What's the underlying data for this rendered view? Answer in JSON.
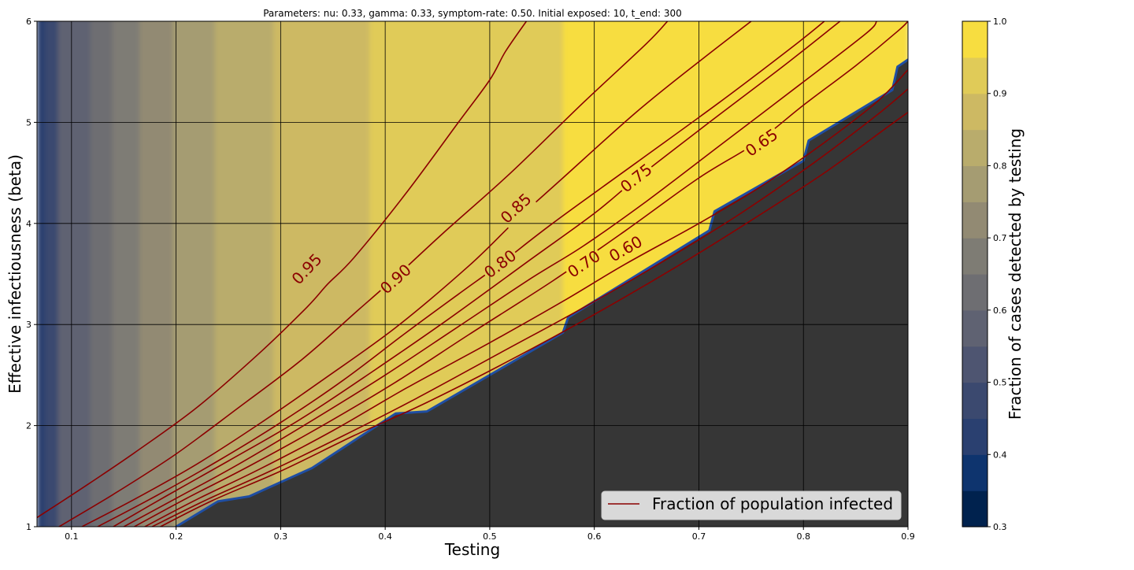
{
  "chart_data": {
    "type": "heatmap",
    "title": "Parameters: nu: 0.33, gamma: 0.33, symptom-rate: 0.50. Initial exposed: 10, t_end: 300",
    "xlabel": "Testing",
    "ylabel": "Effective infectiousness (beta)",
    "xlim": [
      0.067,
      0.9
    ],
    "ylim": [
      1,
      6
    ],
    "x_ticks": [
      0.1,
      0.2,
      0.3,
      0.4,
      0.5,
      0.6,
      0.7,
      0.8,
      0.9
    ],
    "x_tick_labels": [
      "0.1",
      "0.2",
      "0.3",
      "0.4",
      "0.5",
      "0.6",
      "0.7",
      "0.8",
      "0.9"
    ],
    "y_ticks": [
      1,
      2,
      3,
      4,
      5,
      6
    ],
    "y_tick_labels": [
      "1",
      "2",
      "3",
      "4",
      "5",
      "6"
    ],
    "grid": true,
    "colorbar": {
      "label": "Fraction of cases detected by testing",
      "range": [
        0.3,
        1.0
      ],
      "ticks": [
        0.3,
        0.4,
        0.5,
        0.6,
        0.7,
        0.8,
        0.9,
        1.0
      ],
      "tick_labels": [
        "0.3",
        "0.4",
        "0.5",
        "0.6",
        "0.7",
        "0.8",
        "0.9",
        "1.0"
      ],
      "levels": [
        {
          "lo": 0.3,
          "hi": 0.35,
          "color": "#00224e"
        },
        {
          "lo": 0.35,
          "hi": 0.4,
          "color": "#0e346e"
        },
        {
          "lo": 0.4,
          "hi": 0.45,
          "color": "#2a4070"
        },
        {
          "lo": 0.45,
          "hi": 0.5,
          "color": "#3b496f"
        },
        {
          "lo": 0.5,
          "hi": 0.55,
          "color": "#4e5571"
        },
        {
          "lo": 0.55,
          "hi": 0.6,
          "color": "#5f6272"
        },
        {
          "lo": 0.6,
          "hi": 0.65,
          "color": "#6e6e72"
        },
        {
          "lo": 0.65,
          "hi": 0.7,
          "color": "#7e7c74"
        },
        {
          "lo": 0.7,
          "hi": 0.75,
          "color": "#928a73"
        },
        {
          "lo": 0.75,
          "hi": 0.8,
          "color": "#a59c72"
        },
        {
          "lo": 0.8,
          "hi": 0.85,
          "color": "#b9ac6c"
        },
        {
          "lo": 0.85,
          "hi": 0.9,
          "color": "#cdb963"
        },
        {
          "lo": 0.9,
          "hi": 0.95,
          "color": "#e0cb58"
        },
        {
          "lo": 0.95,
          "hi": 1.0,
          "color": "#f7dd40"
        }
      ]
    },
    "no_data_color": "#363636",
    "boundary": [
      [
        0.2,
        1.0
      ],
      [
        0.24,
        1.25
      ],
      [
        0.27,
        1.3
      ],
      [
        0.33,
        1.58
      ],
      [
        0.41,
        2.12
      ],
      [
        0.44,
        2.14
      ],
      [
        0.57,
        2.92
      ],
      [
        0.575,
        3.07
      ],
      [
        0.71,
        3.93
      ],
      [
        0.715,
        4.12
      ],
      [
        0.8,
        4.62
      ],
      [
        0.805,
        4.82
      ],
      [
        0.885,
        5.32
      ],
      [
        0.89,
        5.55
      ],
      [
        0.9,
        5.62
      ]
    ],
    "band_regions": [
      {
        "x0": 0.067,
        "x1": 0.075,
        "value": 0.42
      },
      {
        "x0": 0.075,
        "x1": 0.087,
        "value": 0.47
      },
      {
        "x0": 0.087,
        "x1": 0.118,
        "value": 0.55
      },
      {
        "x0": 0.118,
        "x1": 0.139,
        "value": 0.62
      },
      {
        "x0": 0.139,
        "x1": 0.165,
        "value": 0.67
      },
      {
        "x0": 0.165,
        "x1": 0.197,
        "value": 0.72
      },
      {
        "x0": 0.197,
        "x1": 0.237,
        "value": 0.77
      },
      {
        "x0": 0.237,
        "x1": 0.293,
        "value": 0.82
      },
      {
        "x0": 0.293,
        "x1": 0.385,
        "value": 0.87
      },
      {
        "x0": 0.385,
        "x1": 0.57,
        "value": 0.92
      },
      {
        "x0": 0.57,
        "x1": 0.9,
        "value": 0.97
      }
    ],
    "contour_series_name": "Fraction of population infected",
    "contour_color": "#8b0000",
    "contours": [
      {
        "level": 0.95,
        "label": "0.95",
        "label_at": [
          0.325,
          3.55
        ],
        "points": [
          [
            0.067,
            1.09
          ],
          [
            0.11,
            1.38
          ],
          [
            0.16,
            1.73
          ],
          [
            0.22,
            2.18
          ],
          [
            0.28,
            2.72
          ],
          [
            0.325,
            3.17
          ],
          [
            0.345,
            3.4
          ],
          [
            0.37,
            3.66
          ],
          [
            0.42,
            4.3
          ],
          [
            0.47,
            5.0
          ],
          [
            0.5,
            5.42
          ],
          [
            0.515,
            5.7
          ],
          [
            0.535,
            6.0
          ]
        ]
      },
      {
        "level": 0.9,
        "label": "0.90",
        "label_at": [
          0.41,
          3.45
        ],
        "points": [
          [
            0.088,
            1.0
          ],
          [
            0.14,
            1.32
          ],
          [
            0.2,
            1.72
          ],
          [
            0.26,
            2.18
          ],
          [
            0.32,
            2.65
          ],
          [
            0.375,
            3.15
          ],
          [
            0.41,
            3.47
          ],
          [
            0.455,
            3.9
          ],
          [
            0.52,
            4.5
          ],
          [
            0.59,
            5.2
          ],
          [
            0.65,
            5.78
          ],
          [
            0.67,
            6.0
          ]
        ]
      },
      {
        "level": 0.85,
        "label": "0.85",
        "label_at": [
          0.525,
          4.15
        ],
        "points": [
          [
            0.11,
            1.0
          ],
          [
            0.16,
            1.27
          ],
          [
            0.22,
            1.62
          ],
          [
            0.28,
            2.02
          ],
          [
            0.34,
            2.45
          ],
          [
            0.41,
            2.97
          ],
          [
            0.48,
            3.58
          ],
          [
            0.525,
            4.03
          ],
          [
            0.57,
            4.45
          ],
          [
            0.64,
            5.1
          ],
          [
            0.7,
            5.6
          ],
          [
            0.75,
            6.0
          ]
        ]
      },
      {
        "level": 0.8,
        "label": "0.80",
        "label_at": [
          0.51,
          3.6
        ],
        "points": [
          [
            0.125,
            1.0
          ],
          [
            0.18,
            1.3
          ],
          [
            0.24,
            1.65
          ],
          [
            0.3,
            2.03
          ],
          [
            0.36,
            2.45
          ],
          [
            0.42,
            2.92
          ],
          [
            0.47,
            3.3
          ],
          [
            0.51,
            3.6
          ],
          [
            0.56,
            4.0
          ],
          [
            0.64,
            4.6
          ],
          [
            0.72,
            5.2
          ],
          [
            0.79,
            5.75
          ],
          [
            0.82,
            6.0
          ]
        ]
      },
      {
        "level": 0.75,
        "label": "0.75",
        "label_at": [
          0.64,
          4.45
        ],
        "points": [
          [
            0.14,
            1.0
          ],
          [
            0.19,
            1.3
          ],
          [
            0.25,
            1.65
          ],
          [
            0.32,
            2.07
          ],
          [
            0.39,
            2.55
          ],
          [
            0.46,
            3.05
          ],
          [
            0.54,
            3.65
          ],
          [
            0.6,
            4.1
          ],
          [
            0.64,
            4.44
          ],
          [
            0.71,
            5.0
          ],
          [
            0.78,
            5.55
          ],
          [
            0.835,
            6.0
          ]
        ]
      },
      {
        "level": 0.7,
        "label": "0.70",
        "label_at": [
          0.59,
          3.6
        ],
        "points": [
          [
            0.15,
            1.0
          ],
          [
            0.2,
            1.28
          ],
          [
            0.26,
            1.62
          ],
          [
            0.33,
            2.05
          ],
          [
            0.4,
            2.5
          ],
          [
            0.47,
            2.98
          ],
          [
            0.54,
            3.46
          ],
          [
            0.59,
            3.78
          ],
          [
            0.65,
            4.22
          ],
          [
            0.72,
            4.77
          ],
          [
            0.8,
            5.4
          ],
          [
            0.86,
            5.88
          ],
          [
            0.87,
            6.0
          ]
        ]
      },
      {
        "level": 0.65,
        "label": "0.65",
        "label_at": [
          0.76,
          4.8
        ],
        "points": [
          [
            0.16,
            1.0
          ],
          [
            0.21,
            1.28
          ],
          [
            0.27,
            1.6
          ],
          [
            0.34,
            2.0
          ],
          [
            0.41,
            2.43
          ],
          [
            0.48,
            2.9
          ],
          [
            0.56,
            3.43
          ],
          [
            0.63,
            3.93
          ],
          [
            0.7,
            4.45
          ],
          [
            0.755,
            4.8
          ],
          [
            0.8,
            5.17
          ],
          [
            0.85,
            5.56
          ],
          [
            0.89,
            5.9
          ],
          [
            0.9,
            6.0
          ]
        ]
      },
      {
        "level": 0.6,
        "label": "0.60",
        "label_at": [
          0.63,
          3.75
        ],
        "points": [
          [
            0.17,
            1.0
          ],
          [
            0.22,
            1.27
          ],
          [
            0.28,
            1.57
          ],
          [
            0.35,
            1.95
          ],
          [
            0.42,
            2.37
          ],
          [
            0.5,
            2.82
          ],
          [
            0.57,
            3.23
          ],
          [
            0.63,
            3.6
          ],
          [
            0.7,
            4.0
          ],
          [
            0.76,
            4.37
          ],
          [
            0.82,
            4.8
          ],
          [
            0.87,
            5.2
          ],
          [
            0.9,
            5.52
          ]
        ]
      },
      {
        "level": null,
        "label": "",
        "label_at": null,
        "points": [
          [
            0.177,
            1.0
          ],
          [
            0.23,
            1.27
          ],
          [
            0.29,
            1.55
          ],
          [
            0.36,
            1.9
          ],
          [
            0.43,
            2.27
          ],
          [
            0.51,
            2.72
          ],
          [
            0.59,
            3.17
          ],
          [
            0.67,
            3.65
          ],
          [
            0.74,
            4.1
          ],
          [
            0.81,
            4.6
          ],
          [
            0.87,
            5.07
          ],
          [
            0.9,
            5.33
          ]
        ]
      },
      {
        "level": null,
        "label": "",
        "label_at": null,
        "points": [
          [
            0.185,
            1.0
          ],
          [
            0.235,
            1.26
          ],
          [
            0.3,
            1.55
          ],
          [
            0.37,
            1.9
          ],
          [
            0.44,
            2.23
          ],
          [
            0.52,
            2.65
          ],
          [
            0.6,
            3.1
          ],
          [
            0.68,
            3.58
          ],
          [
            0.75,
            4.03
          ],
          [
            0.82,
            4.5
          ],
          [
            0.88,
            4.95
          ],
          [
            0.9,
            5.1
          ]
        ]
      }
    ],
    "legend": {
      "entries": [
        "Fraction of population infected"
      ],
      "position": "lower-right"
    }
  }
}
